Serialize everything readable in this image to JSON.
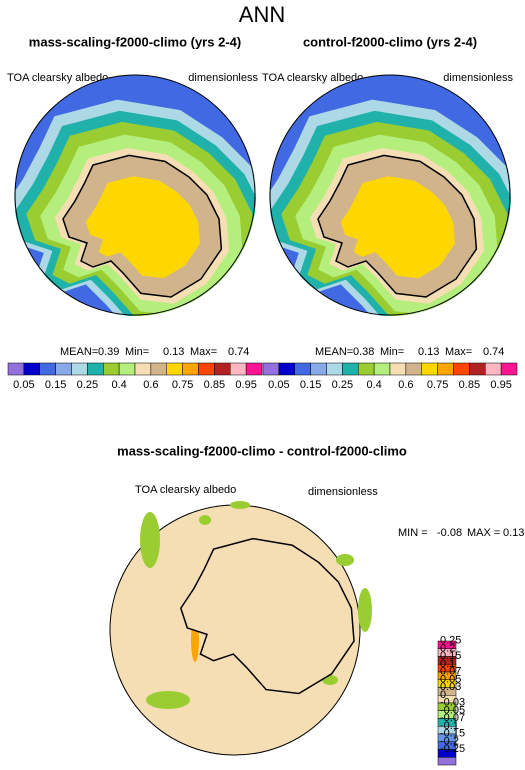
{
  "title": "ANN",
  "panels": [
    {
      "title": "mass-scaling-f2000-climo (yrs 2-4)",
      "variable": "TOA clearsky albedo",
      "units": "dimensionless",
      "stats": [
        {
          "label": "MEAN=",
          "value": 0.39
        },
        {
          "label": "Min=",
          "value": 0.13
        },
        {
          "label": "Max=",
          "value": 0.74
        }
      ]
    },
    {
      "title": "control-f2000-climo (yrs 2-4)",
      "variable": "TOA clearsky albedo",
      "units": "dimensionless",
      "stats": [
        {
          "label": "MEAN=",
          "value": 0.38
        },
        {
          "label": "Min=",
          "value": 0.13
        },
        {
          "label": "Max=",
          "value": 0.74
        }
      ]
    }
  ],
  "colorbar": {
    "colors": [
      "#9370db",
      "#0000cd",
      "#4169e1",
      "#87a9e8",
      "#add8e6",
      "#20b2aa",
      "#9acd32",
      "#b4ee7c",
      "#f5deb3",
      "#d2b48c",
      "#ffd700",
      "#ffa500",
      "#ff4500",
      "#b22222",
      "#ffb6c1",
      "#ff1493"
    ],
    "labels": [
      0.05,
      0.15,
      0.25,
      0.4,
      0.6,
      0.75,
      0.85,
      0.95
    ]
  },
  "difference": {
    "title": "mass-scaling-f2000-climo - control-f2000-climo",
    "variable": "TOA clearsky albedo",
    "units": "dimensionless",
    "stats": [
      {
        "label": "MIN =",
        "value": -0.08
      },
      {
        "label": "MAX =",
        "value": 0.13
      }
    ],
    "colorbar": {
      "colors": [
        "#ff1493",
        "#ffb6c1",
        "#b22222",
        "#ff4500",
        "#ffa500",
        "#ffd700",
        "#d2b48c",
        "#f5deb3",
        "#9acd32",
        "#b4ee7c",
        "#20b2aa",
        "#add8e6",
        "#6495ed",
        "#4169e1",
        "#0000cd",
        "#9370db"
      ],
      "labels": [
        0.25,
        0.2,
        0.15,
        0.1,
        0.07,
        0.05,
        0.03,
        0,
        -0.03,
        -0.05,
        -0.07,
        -0.1,
        -0.15,
        -0.2,
        -0.25
      ]
    }
  }
}
